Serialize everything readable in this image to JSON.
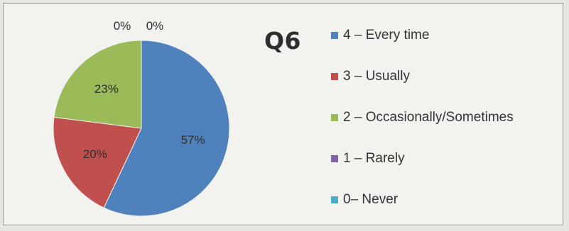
{
  "title": "Q6",
  "chart_data": {
    "type": "pie",
    "title": "Q6",
    "slices": [
      {
        "label": "4 – Every time",
        "value": 57,
        "value_label": "57%",
        "color": "#4f81bd"
      },
      {
        "label": "3 – Usually",
        "value": 20,
        "value_label": "20%",
        "color": "#c0504d"
      },
      {
        "label": "2 – Occasionally/Sometimes",
        "value": 23,
        "value_label": "23%",
        "color": "#9bbb59"
      },
      {
        "label": "1 – Rarely",
        "value": 0,
        "value_label": "0%",
        "color": "#8064a2"
      },
      {
        "label": "0– Never",
        "value": 0,
        "value_label": "0%",
        "color": "#4bacc6"
      }
    ],
    "legend_position": "right"
  }
}
